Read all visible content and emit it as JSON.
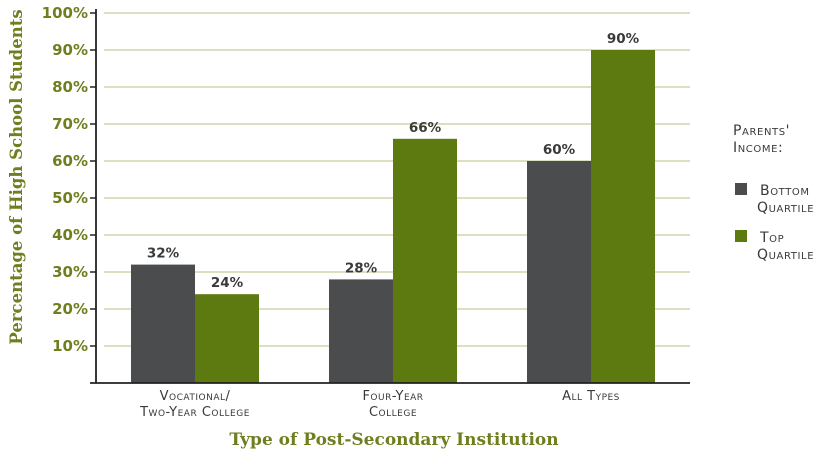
{
  "chart_data": {
    "type": "bar",
    "categories": [
      [
        "Vocational/",
        "Two-Year College"
      ],
      [
        "Four-Year",
        "College"
      ],
      [
        "All Types"
      ]
    ],
    "series": [
      {
        "name": "Bottom Quartile",
        "name_lines": [
          "Bottom",
          "Quartile"
        ],
        "values": [
          32,
          28,
          60
        ],
        "labels": [
          "32%",
          "28%",
          "60%"
        ],
        "color": "#4a4c4e"
      },
      {
        "name": "Top Quartile",
        "name_lines": [
          "Top",
          "Quartile"
        ],
        "values": [
          24,
          66,
          90
        ],
        "labels": [
          "24%",
          "66%",
          "90%"
        ],
        "color": "#5c7a0f"
      }
    ],
    "yticks": [
      "10%",
      "20%",
      "30%",
      "40%",
      "50%",
      "60%",
      "70%",
      "80%",
      "90%",
      "100%"
    ],
    "ylim": [
      0,
      100
    ],
    "xlabel": "Type of Post-Secondary Institution",
    "ylabel": "Percentage of High School Students",
    "legend_title": [
      "Parents'",
      "Income:"
    ],
    "legend_position": "right",
    "grid": true,
    "grid_color": "#c7cc9b",
    "axis_text_color": "#6f7f1f"
  }
}
